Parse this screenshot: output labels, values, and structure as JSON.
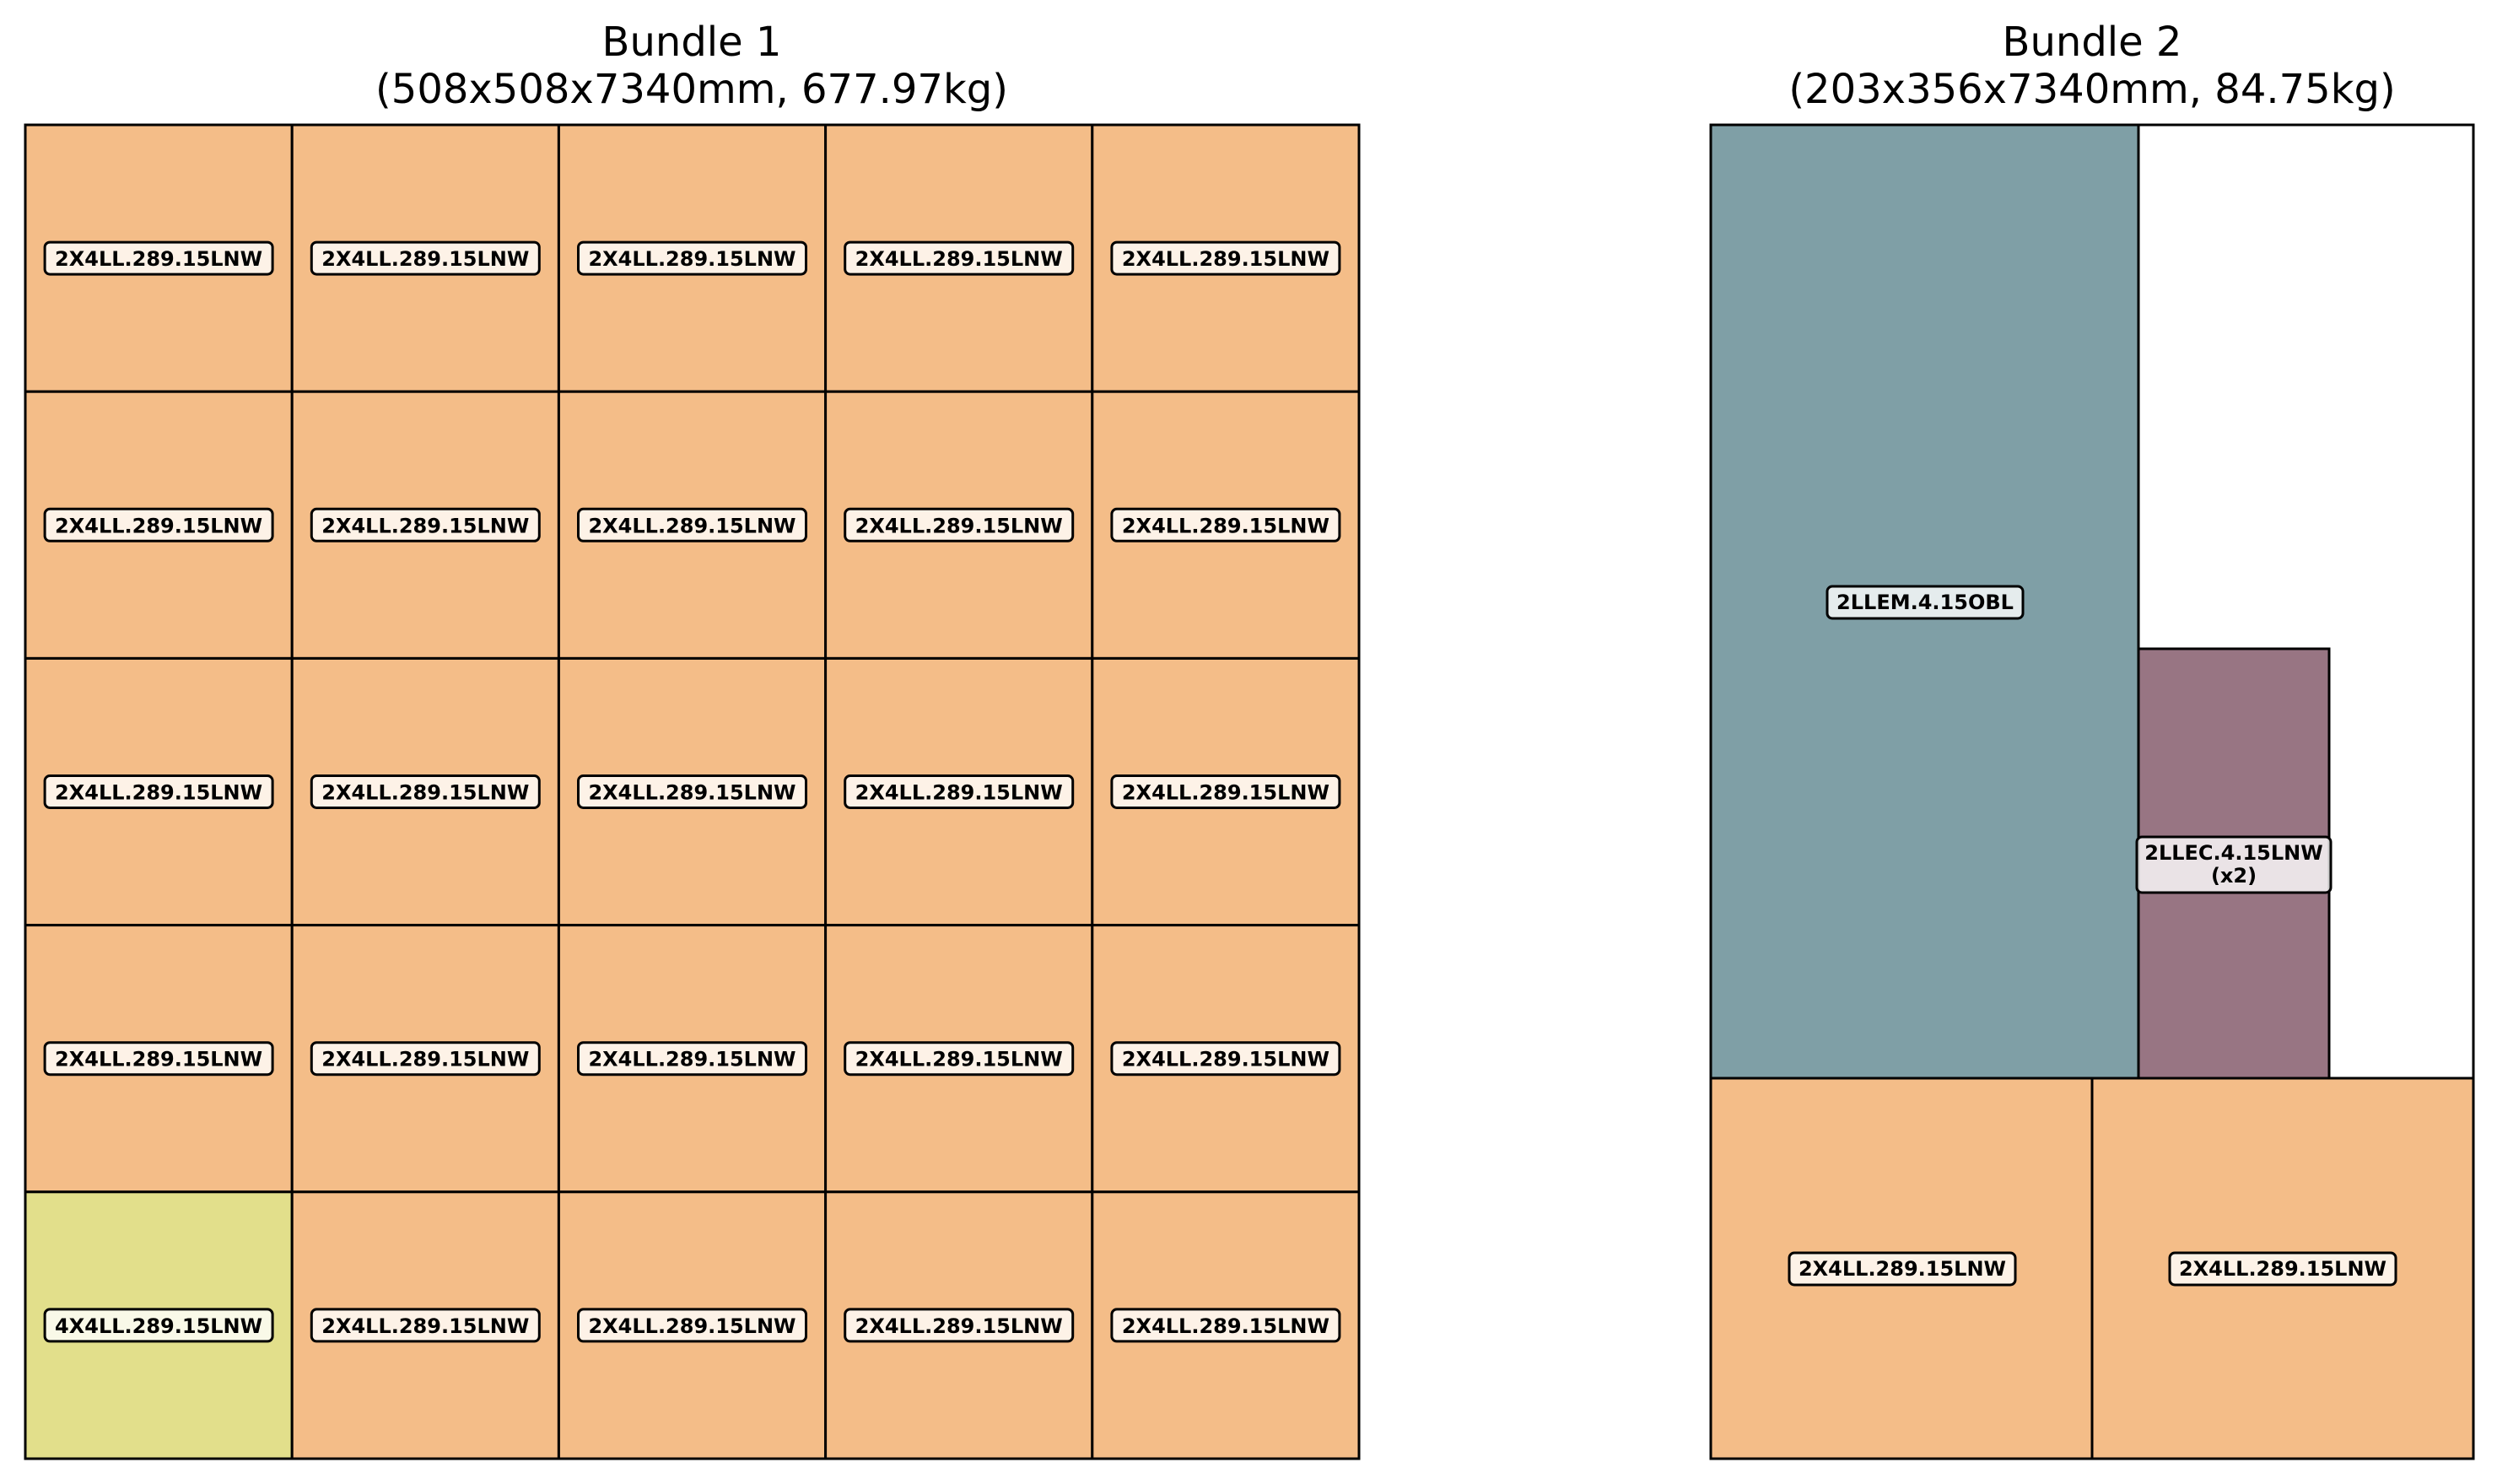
{
  "bundles": [
    {
      "title_line1": "Bundle 1",
      "title_line2": "(508x508x7340mm, 677.97kg)",
      "grid": {
        "rows": [
          [
            "2X4LL.289.15LNW",
            "2X4LL.289.15LNW",
            "2X4LL.289.15LNW",
            "2X4LL.289.15LNW",
            "2X4LL.289.15LNW"
          ],
          [
            "2X4LL.289.15LNW",
            "2X4LL.289.15LNW",
            "2X4LL.289.15LNW",
            "2X4LL.289.15LNW",
            "2X4LL.289.15LNW"
          ],
          [
            "2X4LL.289.15LNW",
            "2X4LL.289.15LNW",
            "2X4LL.289.15LNW",
            "2X4LL.289.15LNW",
            "2X4LL.289.15LNW"
          ],
          [
            "2X4LL.289.15LNW",
            "2X4LL.289.15LNW",
            "2X4LL.289.15LNW",
            "2X4LL.289.15LNW",
            "2X4LL.289.15LNW"
          ],
          [
            "4X4LL.289.15LNW",
            "2X4LL.289.15LNW",
            "2X4LL.289.15LNW",
            "2X4LL.289.15LNW",
            "2X4LL.289.15LNW"
          ]
        ]
      }
    },
    {
      "title_line1": "Bundle 2",
      "title_line2": "(203x356x7340mm, 84.75kg)",
      "pieces": [
        {
          "label": "2LLEM.4.15OBL",
          "color": "#7f9fa6"
        },
        {
          "label": "2LLEC.4.15LNW",
          "sublabel": "(x2)",
          "color": "#987583"
        },
        {
          "label": "2X4LL.289.15LNW",
          "color": "#f4bd88"
        },
        {
          "label": "2X4LL.289.15LNW",
          "color": "#f4bd88"
        }
      ]
    }
  ],
  "colors": {
    "2X4LL.289.15LNW": "#f4bd88",
    "4X4LL.289.15LNW": "#e2df8b",
    "2LLEM.4.15OBL": "#7f9fa6",
    "2LLEC.4.15LNW": "#987583"
  }
}
